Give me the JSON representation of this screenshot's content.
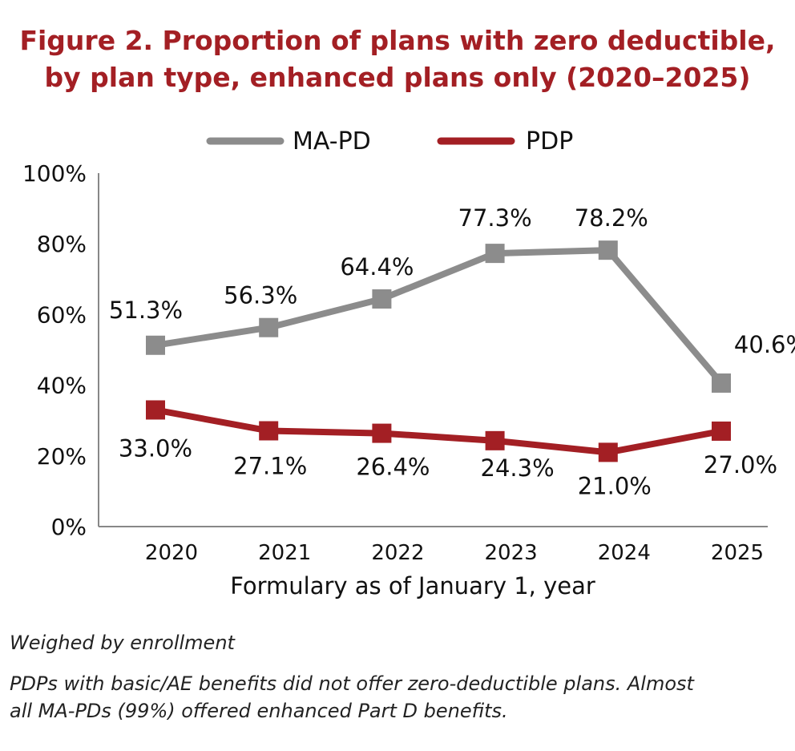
{
  "title_line1": "Figure 2. Proportion of plans with zero deductible,",
  "title_line2": "by plan type, enhanced plans only (2020–2025)",
  "notes": [
    "Weighed by enrollment",
    "PDPs with basic/AE benefits did not offer zero-deductible plans. Almost",
    "all MA-PDs (99%) offered enhanced Part D benefits."
  ],
  "chart_data": {
    "type": "line",
    "title": "Figure 2. Proportion of plans with zero deductible, by plan type, enhanced plans only (2020–2025)",
    "xlabel": "Formulary as of January 1, year",
    "ylabel": "",
    "categories": [
      "2020",
      "2021",
      "2022",
      "2023",
      "2024",
      "2025"
    ],
    "ylim": [
      0,
      100
    ],
    "yticks": [
      0,
      20,
      40,
      60,
      80,
      100
    ],
    "ytick_labels": [
      "0%",
      "20%",
      "40%",
      "60%",
      "80%",
      "100%"
    ],
    "grid": false,
    "legend": "top-center",
    "series": [
      {
        "name": "MA-PD",
        "color": "#8c8c8c",
        "values": [
          51.3,
          56.3,
          64.4,
          77.3,
          78.2,
          40.6
        ],
        "labels": [
          "51.3%",
          "56.3%",
          "64.4%",
          "77.3%",
          "78.2%",
          "40.6%"
        ]
      },
      {
        "name": "PDP",
        "color": "#a31f24",
        "values": [
          33.0,
          27.1,
          26.4,
          24.3,
          21.0,
          27.0
        ],
        "labels": [
          "33.0%",
          "27.1%",
          "26.4%",
          "24.3%",
          "21.0%",
          "27.0%"
        ]
      }
    ]
  }
}
